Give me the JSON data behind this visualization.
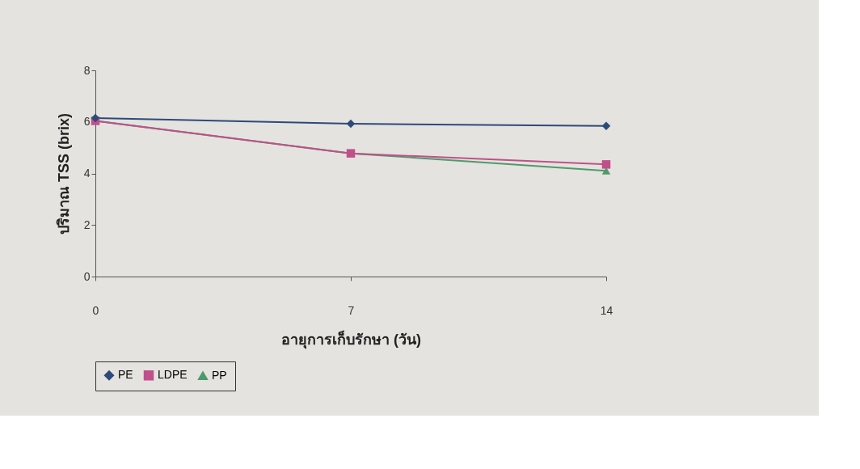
{
  "chart_data": {
    "type": "line",
    "xlabel": "อายุการเก็บรักษา (วัน)",
    "ylabel": "ปริมาณ TSS (brix)",
    "categories": [
      "0",
      "7",
      "14"
    ],
    "series": [
      {
        "name": "PE",
        "color": "#2e4a7a",
        "marker": "diamond",
        "values": [
          6.15,
          5.93,
          5.84
        ]
      },
      {
        "name": "LDPE",
        "color": "#c0508a",
        "marker": "square",
        "values": [
          6.04,
          4.78,
          4.35
        ]
      },
      {
        "name": "PP",
        "color": "#4f9a6a",
        "marker": "triangle",
        "values": [
          6.04,
          4.78,
          4.1
        ]
      }
    ],
    "ylim": [
      0,
      8
    ],
    "yticks": [
      0,
      2,
      4,
      6,
      8
    ],
    "grid": false,
    "legend": "bottom",
    "line_style": "solid"
  }
}
